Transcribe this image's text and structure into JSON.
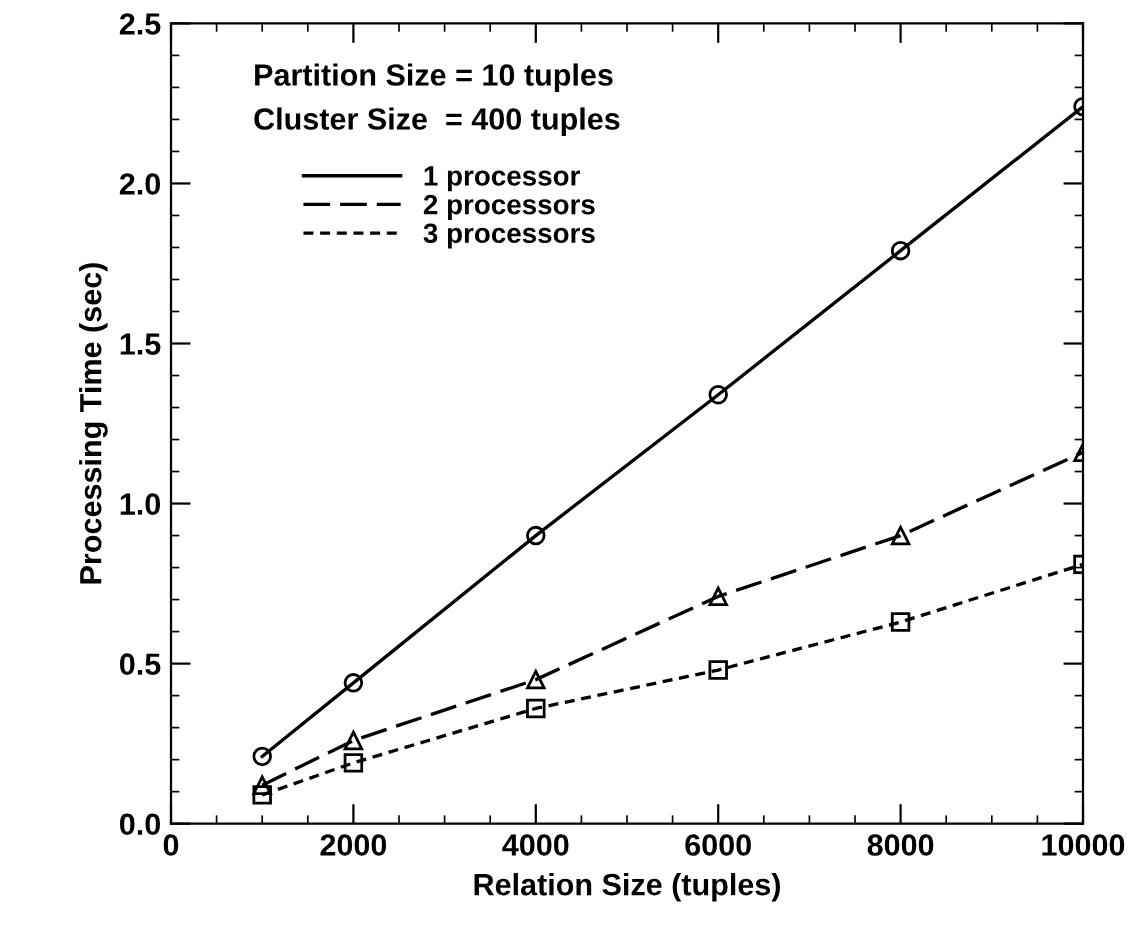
{
  "chart_data": {
    "type": "line",
    "xlabel": "Relation Size (tuples)",
    "ylabel": "Processing Time (sec)",
    "annotations": [
      "Partition Size = 10 tuples",
      "Cluster Size  = 400 tuples"
    ],
    "x": [
      1000,
      2000,
      4000,
      6000,
      8000,
      10000
    ],
    "series": [
      {
        "name": "1 processor",
        "color": "#000000",
        "marker": "circle",
        "line_style": "solid",
        "values": [
          0.21,
          0.44,
          0.9,
          1.34,
          1.79,
          2.24
        ]
      },
      {
        "name": "2 processors",
        "color": "#000000",
        "marker": "triangle",
        "line_style": "dashed",
        "values": [
          0.12,
          0.26,
          0.45,
          0.71,
          0.9,
          1.16
        ]
      },
      {
        "name": "3 processors",
        "color": "#000000",
        "marker": "square",
        "line_style": "dotted",
        "values": [
          0.09,
          0.19,
          0.36,
          0.48,
          0.63,
          0.81
        ]
      }
    ],
    "xlim": [
      0,
      10000
    ],
    "xticks": [
      0,
      2000,
      4000,
      6000,
      8000,
      10000
    ],
    "ylim": [
      0,
      2.5
    ],
    "yticks": [
      {
        "value": 0,
        "label": "0.0"
      },
      0.5,
      {
        "value": 1,
        "label": "1.0"
      },
      1.5,
      {
        "value": 2,
        "label": "2.0"
      },
      2.5
    ],
    "grid": false,
    "legend": "top left"
  }
}
